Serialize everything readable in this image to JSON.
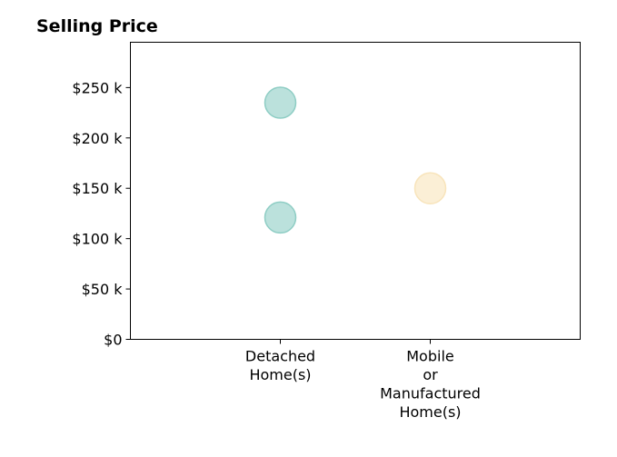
{
  "chart_data": {
    "type": "scatter",
    "title": "Selling Price",
    "xlabel": "",
    "ylabel": "",
    "categories": [
      [
        "Detached",
        "Home(s)"
      ],
      [
        "Mobile",
        "or",
        "Manufactured",
        "Home(s)"
      ]
    ],
    "x_range": [
      -1,
      2
    ],
    "ylim": [
      0,
      295000
    ],
    "yticks": [
      0,
      50000,
      100000,
      150000,
      200000,
      250000
    ],
    "ytick_labels": [
      "$0",
      "$50 k",
      "$100 k",
      "$150 k",
      "$200 k",
      "$250 k"
    ],
    "grid": false,
    "series": [
      {
        "color": "#8ecdc4",
        "points": [
          {
            "category_index": 0,
            "y": 235000
          },
          {
            "category_index": 0,
            "y": 121000
          }
        ]
      },
      {
        "color": "#f8e4bb",
        "points": [
          {
            "category_index": 1,
            "y": 150000
          }
        ]
      }
    ]
  }
}
